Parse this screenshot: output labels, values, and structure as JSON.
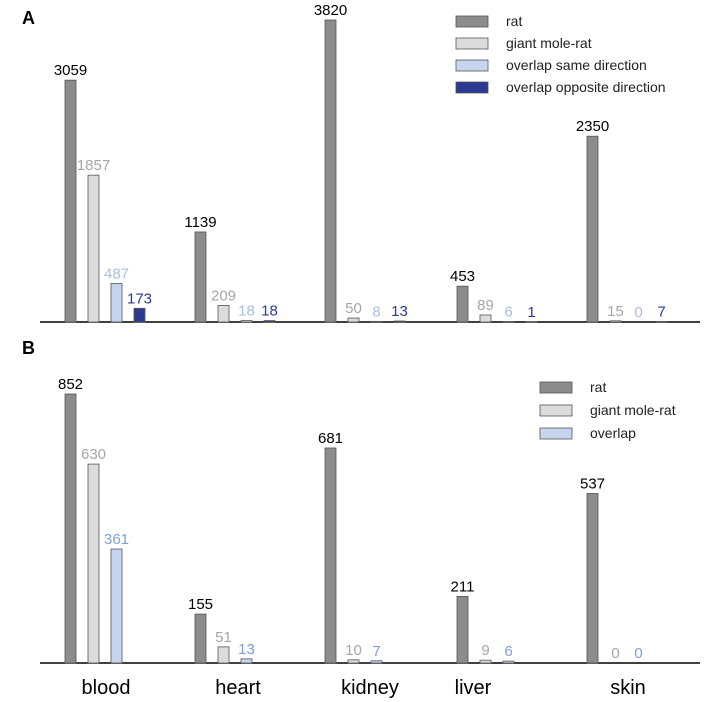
{
  "chart_data": [
    {
      "panel": "A",
      "type": "bar",
      "categories": [
        "blood",
        "heart",
        "kidney",
        "liver",
        "skin"
      ],
      "series": [
        {
          "name": "rat",
          "values": [
            3059,
            1139,
            3820,
            453,
            2350
          ],
          "color": "#8c8c8c",
          "label_color": "#000000"
        },
        {
          "name": "giant mole-rat",
          "values": [
            1857,
            209,
            50,
            89,
            15
          ],
          "color": "#dcdcdc",
          "label_color": "#a6a6a6"
        },
        {
          "name": "overlap same direction",
          "values": [
            487,
            18,
            8,
            6,
            0
          ],
          "color": "#c6d4ee",
          "label_color": "#a9bde2"
        },
        {
          "name": "overlap opposite direction",
          "values": [
            173,
            18,
            13,
            1,
            7
          ],
          "color": "#2b3990",
          "label_color": "#2b3990"
        }
      ],
      "ylim": [
        0,
        3820
      ],
      "legend": "top-right"
    },
    {
      "panel": "B",
      "type": "bar",
      "categories": [
        "blood",
        "heart",
        "kidney",
        "liver",
        "skin"
      ],
      "series": [
        {
          "name": "rat",
          "values": [
            852,
            155,
            681,
            211,
            537
          ],
          "color": "#8c8c8c",
          "label_color": "#000000"
        },
        {
          "name": "giant mole-rat",
          "values": [
            630,
            51,
            10,
            9,
            0
          ],
          "color": "#dcdcdc",
          "label_color": "#a6a6a6"
        },
        {
          "name": "overlap",
          "values": [
            361,
            13,
            7,
            6,
            0
          ],
          "color": "#c6d4ee",
          "label_color": "#7f9fd6"
        }
      ],
      "ylim": [
        0,
        852
      ],
      "legend": "top-right"
    }
  ]
}
